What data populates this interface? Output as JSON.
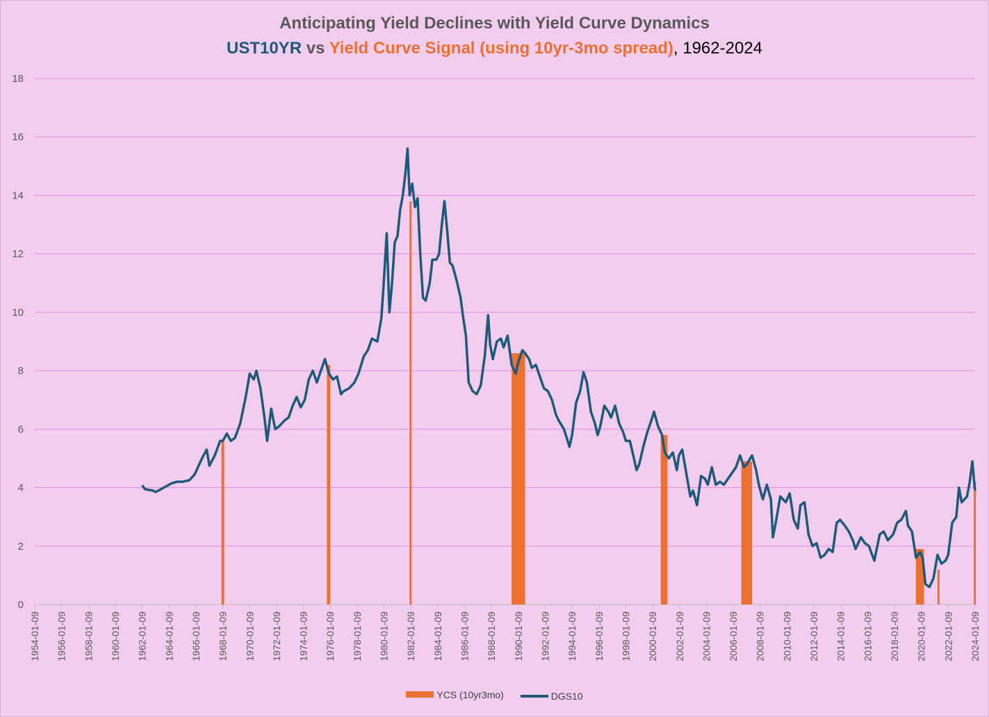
{
  "title": {
    "line1": "Anticipating Yield Declines with Yield Curve Dynamics",
    "line2_part1": "UST10YR",
    "line2_part2": " vs ",
    "line2_part3": "Yield Curve Signal (using 10yr-3mo spread)",
    "line2_part4": ", 1962-2024"
  },
  "colors": {
    "background": "#f2cdee",
    "grid": "#e58bdd",
    "line": "#1d5a7a",
    "bars": "#ed7031"
  },
  "legend": {
    "bar_label": "YCS (10yr3mo)",
    "line_label": "DGS10"
  },
  "chart_data": {
    "type": "line",
    "title": "Anticipating Yield Declines with Yield Curve Dynamics",
    "ylim": [
      0,
      18
    ],
    "xlim": [
      1954.0,
      2024.0
    ],
    "y_ticks": [
      0,
      2,
      4,
      6,
      8,
      10,
      12,
      14,
      16,
      18
    ],
    "x_tick_labels": [
      "1954-01-09",
      "1956-01-09",
      "1958-01-09",
      "1960-01-09",
      "1962-01-09",
      "1964-01-09",
      "1966-01-09",
      "1968-01-09",
      "1970-01-09",
      "1972-01-09",
      "1974-01-09",
      "1976-01-09",
      "1978-01-09",
      "1980-01-09",
      "1982-01-09",
      "1984-01-09",
      "1986-01-09",
      "1988-01-09",
      "1990-01-09",
      "1992-01-09",
      "1994-01-09",
      "1996-01-09",
      "1998-01-09",
      "2000-01-09",
      "2002-01-09",
      "2004-01-09",
      "2006-01-09",
      "2008-01-09",
      "2010-01-09",
      "2012-01-09",
      "2014-01-09",
      "2016-01-09",
      "2018-01-09",
      "2020-01-09",
      "2022-01-09",
      "2024-01-09"
    ],
    "gridlines": "horizontal",
    "legend_position": "bottom",
    "series": [
      {
        "name": "DGS10",
        "type": "line",
        "points": [
          [
            1962.0,
            4.08
          ],
          [
            1962.2,
            3.95
          ],
          [
            1962.5,
            3.92
          ],
          [
            1962.8,
            3.9
          ],
          [
            1963.0,
            3.85
          ],
          [
            1963.4,
            3.95
          ],
          [
            1963.8,
            4.05
          ],
          [
            1964.2,
            4.15
          ],
          [
            1964.6,
            4.2
          ],
          [
            1965.0,
            4.2
          ],
          [
            1965.5,
            4.25
          ],
          [
            1965.9,
            4.45
          ],
          [
            1966.2,
            4.75
          ],
          [
            1966.5,
            5.05
          ],
          [
            1966.8,
            5.3
          ],
          [
            1967.0,
            4.75
          ],
          [
            1967.4,
            5.1
          ],
          [
            1967.8,
            5.6
          ],
          [
            1968.0,
            5.6
          ],
          [
            1968.3,
            5.85
          ],
          [
            1968.6,
            5.6
          ],
          [
            1968.9,
            5.7
          ],
          [
            1969.3,
            6.2
          ],
          [
            1969.7,
            7.1
          ],
          [
            1970.0,
            7.9
          ],
          [
            1970.3,
            7.7
          ],
          [
            1970.5,
            8.0
          ],
          [
            1970.8,
            7.4
          ],
          [
            1971.1,
            6.4
          ],
          [
            1971.3,
            5.6
          ],
          [
            1971.6,
            6.7
          ],
          [
            1971.9,
            6.0
          ],
          [
            1972.2,
            6.1
          ],
          [
            1972.6,
            6.3
          ],
          [
            1972.9,
            6.4
          ],
          [
            1973.2,
            6.8
          ],
          [
            1973.5,
            7.1
          ],
          [
            1973.8,
            6.75
          ],
          [
            1974.1,
            7.0
          ],
          [
            1974.4,
            7.7
          ],
          [
            1974.7,
            8.0
          ],
          [
            1975.0,
            7.6
          ],
          [
            1975.3,
            8.0
          ],
          [
            1975.6,
            8.4
          ],
          [
            1975.9,
            7.9
          ],
          [
            1976.2,
            7.7
          ],
          [
            1976.5,
            7.8
          ],
          [
            1976.8,
            7.2
          ],
          [
            1977.0,
            7.3
          ],
          [
            1977.4,
            7.4
          ],
          [
            1977.8,
            7.6
          ],
          [
            1978.1,
            7.9
          ],
          [
            1978.5,
            8.5
          ],
          [
            1978.8,
            8.7
          ],
          [
            1979.1,
            9.1
          ],
          [
            1979.5,
            9.0
          ],
          [
            1979.8,
            9.8
          ],
          [
            1979.95,
            10.8
          ],
          [
            1980.2,
            12.7
          ],
          [
            1980.4,
            10.0
          ],
          [
            1980.6,
            11.0
          ],
          [
            1980.8,
            12.4
          ],
          [
            1981.0,
            12.6
          ],
          [
            1981.2,
            13.5
          ],
          [
            1981.4,
            14.0
          ],
          [
            1981.6,
            14.8
          ],
          [
            1981.75,
            15.6
          ],
          [
            1981.9,
            14.0
          ],
          [
            1982.1,
            14.4
          ],
          [
            1982.3,
            13.6
          ],
          [
            1982.5,
            13.9
          ],
          [
            1982.7,
            12.0
          ],
          [
            1982.9,
            10.5
          ],
          [
            1983.1,
            10.4
          ],
          [
            1983.4,
            11.0
          ],
          [
            1983.6,
            11.8
          ],
          [
            1983.9,
            11.8
          ],
          [
            1984.1,
            12.0
          ],
          [
            1984.3,
            13.0
          ],
          [
            1984.5,
            13.8
          ],
          [
            1984.7,
            12.8
          ],
          [
            1984.9,
            11.7
          ],
          [
            1985.1,
            11.6
          ],
          [
            1985.4,
            11.1
          ],
          [
            1985.7,
            10.5
          ],
          [
            1985.9,
            9.8
          ],
          [
            1986.1,
            9.2
          ],
          [
            1986.3,
            7.6
          ],
          [
            1986.6,
            7.3
          ],
          [
            1986.9,
            7.2
          ],
          [
            1987.2,
            7.5
          ],
          [
            1987.5,
            8.5
          ],
          [
            1987.75,
            9.9
          ],
          [
            1987.9,
            8.9
          ],
          [
            1988.1,
            8.4
          ],
          [
            1988.4,
            9.0
          ],
          [
            1988.7,
            9.1
          ],
          [
            1988.9,
            8.8
          ],
          [
            1989.2,
            9.2
          ],
          [
            1989.5,
            8.2
          ],
          [
            1989.8,
            7.9
          ],
          [
            1990.0,
            8.3
          ],
          [
            1990.3,
            8.7
          ],
          [
            1990.5,
            8.6
          ],
          [
            1990.8,
            8.4
          ],
          [
            1991.0,
            8.1
          ],
          [
            1991.3,
            8.2
          ],
          [
            1991.6,
            7.8
          ],
          [
            1991.9,
            7.4
          ],
          [
            1992.2,
            7.3
          ],
          [
            1992.5,
            7.0
          ],
          [
            1992.8,
            6.5
          ],
          [
            1993.0,
            6.3
          ],
          [
            1993.4,
            6.0
          ],
          [
            1993.8,
            5.4
          ],
          [
            1994.0,
            5.8
          ],
          [
            1994.3,
            6.9
          ],
          [
            1994.6,
            7.3
          ],
          [
            1994.85,
            7.95
          ],
          [
            1995.1,
            7.6
          ],
          [
            1995.4,
            6.6
          ],
          [
            1995.7,
            6.2
          ],
          [
            1995.9,
            5.8
          ],
          [
            1996.1,
            6.1
          ],
          [
            1996.4,
            6.8
          ],
          [
            1996.7,
            6.6
          ],
          [
            1996.9,
            6.4
          ],
          [
            1997.2,
            6.8
          ],
          [
            1997.5,
            6.2
          ],
          [
            1997.8,
            5.9
          ],
          [
            1998.0,
            5.6
          ],
          [
            1998.3,
            5.6
          ],
          [
            1998.6,
            5.0
          ],
          [
            1998.8,
            4.6
          ],
          [
            1999.0,
            4.8
          ],
          [
            1999.3,
            5.4
          ],
          [
            1999.6,
            5.9
          ],
          [
            1999.9,
            6.3
          ],
          [
            2000.1,
            6.6
          ],
          [
            2000.4,
            6.1
          ],
          [
            2000.7,
            5.8
          ],
          [
            2000.9,
            5.2
          ],
          [
            2001.2,
            5.0
          ],
          [
            2001.5,
            5.2
          ],
          [
            2001.8,
            4.6
          ],
          [
            2001.95,
            5.1
          ],
          [
            2002.2,
            5.3
          ],
          [
            2002.5,
            4.5
          ],
          [
            2002.8,
            3.7
          ],
          [
            2003.0,
            3.9
          ],
          [
            2003.3,
            3.4
          ],
          [
            2003.6,
            4.4
          ],
          [
            2003.9,
            4.3
          ],
          [
            2004.1,
            4.1
          ],
          [
            2004.4,
            4.7
          ],
          [
            2004.7,
            4.1
          ],
          [
            2005.0,
            4.2
          ],
          [
            2005.3,
            4.1
          ],
          [
            2005.6,
            4.3
          ],
          [
            2005.9,
            4.5
          ],
          [
            2006.2,
            4.7
          ],
          [
            2006.5,
            5.1
          ],
          [
            2006.8,
            4.7
          ],
          [
            2007.0,
            4.8
          ],
          [
            2007.4,
            5.1
          ],
          [
            2007.7,
            4.6
          ],
          [
            2007.9,
            4.1
          ],
          [
            2008.2,
            3.6
          ],
          [
            2008.5,
            4.1
          ],
          [
            2008.8,
            3.6
          ],
          [
            2008.95,
            2.3
          ],
          [
            2009.2,
            2.9
          ],
          [
            2009.5,
            3.7
          ],
          [
            2009.9,
            3.5
          ],
          [
            2010.2,
            3.8
          ],
          [
            2010.5,
            2.9
          ],
          [
            2010.8,
            2.6
          ],
          [
            2011.0,
            3.4
          ],
          [
            2011.3,
            3.5
          ],
          [
            2011.6,
            2.4
          ],
          [
            2011.9,
            2.0
          ],
          [
            2012.2,
            2.1
          ],
          [
            2012.5,
            1.6
          ],
          [
            2012.8,
            1.7
          ],
          [
            2013.1,
            1.9
          ],
          [
            2013.4,
            1.8
          ],
          [
            2013.7,
            2.8
          ],
          [
            2013.95,
            2.9
          ],
          [
            2014.3,
            2.7
          ],
          [
            2014.6,
            2.5
          ],
          [
            2014.9,
            2.2
          ],
          [
            2015.1,
            1.9
          ],
          [
            2015.5,
            2.3
          ],
          [
            2015.8,
            2.1
          ],
          [
            2016.1,
            2.0
          ],
          [
            2016.5,
            1.5
          ],
          [
            2016.9,
            2.4
          ],
          [
            2017.2,
            2.5
          ],
          [
            2017.5,
            2.2
          ],
          [
            2017.9,
            2.4
          ],
          [
            2018.2,
            2.8
          ],
          [
            2018.5,
            2.9
          ],
          [
            2018.85,
            3.2
          ],
          [
            2019.0,
            2.7
          ],
          [
            2019.3,
            2.5
          ],
          [
            2019.6,
            1.6
          ],
          [
            2019.9,
            1.8
          ],
          [
            2020.1,
            1.6
          ],
          [
            2020.3,
            0.7
          ],
          [
            2020.6,
            0.6
          ],
          [
            2020.9,
            0.9
          ],
          [
            2021.2,
            1.7
          ],
          [
            2021.5,
            1.4
          ],
          [
            2021.8,
            1.5
          ],
          [
            2022.0,
            1.7
          ],
          [
            2022.3,
            2.8
          ],
          [
            2022.6,
            3.0
          ],
          [
            2022.8,
            4.0
          ],
          [
            2023.0,
            3.5
          ],
          [
            2023.2,
            3.6
          ],
          [
            2023.4,
            3.7
          ],
          [
            2023.6,
            4.2
          ],
          [
            2023.8,
            4.9
          ],
          [
            2023.95,
            4.1
          ],
          [
            2024.0,
            3.9
          ]
        ]
      },
      {
        "name": "YCS (10yr3mo)",
        "type": "bar",
        "intervals": [
          [
            1967.9,
            1968.1,
            5.6
          ],
          [
            1975.75,
            1976.0,
            8.2
          ],
          [
            1981.9,
            1982.0,
            13.8
          ],
          [
            1989.5,
            1990.5,
            8.6
          ],
          [
            2000.6,
            2001.1,
            5.8
          ],
          [
            2006.6,
            2007.4,
            4.9
          ],
          [
            2019.6,
            2020.2,
            1.9
          ],
          [
            2021.2,
            2021.35,
            1.2
          ],
          [
            2023.9,
            2024.0,
            4.2
          ]
        ]
      }
    ]
  }
}
